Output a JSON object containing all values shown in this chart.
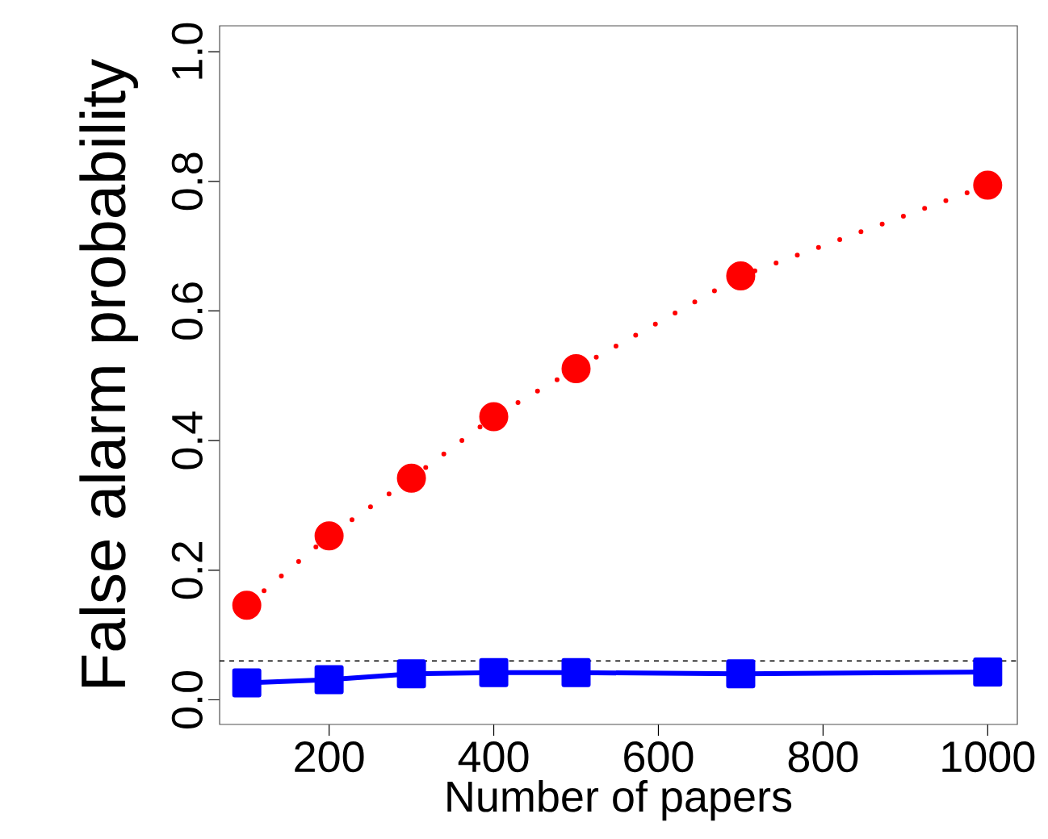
{
  "chart_data": {
    "type": "line",
    "xlabel": "Number of papers",
    "ylabel": "False alarm probability",
    "x": [
      100,
      200,
      300,
      400,
      500,
      700,
      1000
    ],
    "series": [
      {
        "color": "#ff0000",
        "marker": "circle",
        "line_style": "dotted",
        "values": [
          0.146,
          0.253,
          0.342,
          0.437,
          0.511,
          0.654,
          0.794
        ]
      },
      {
        "color": "#0000ff",
        "marker": "square",
        "line_style": "solid",
        "values": [
          0.026,
          0.031,
          0.04,
          0.042,
          0.042,
          0.04,
          0.043
        ]
      }
    ],
    "xlim": [
      67,
      1036
    ],
    "ylim": [
      -0.038,
      1.04
    ],
    "xticks": [
      200,
      400,
      600,
      800,
      1000
    ],
    "yticks": [
      {
        "value": 0,
        "label": "0.0"
      },
      {
        "value": 0.2,
        "label": "0.2"
      },
      {
        "value": 0.4,
        "label": "0.4"
      },
      {
        "value": 0.6,
        "label": "0.6"
      },
      {
        "value": 0.8,
        "label": "0.8"
      },
      {
        "value": 1,
        "label": "1.0"
      }
    ],
    "ref_lines": [
      {
        "axis": "y",
        "value": 0.06,
        "color": "#000000",
        "line_style": "dashed"
      }
    ]
  }
}
